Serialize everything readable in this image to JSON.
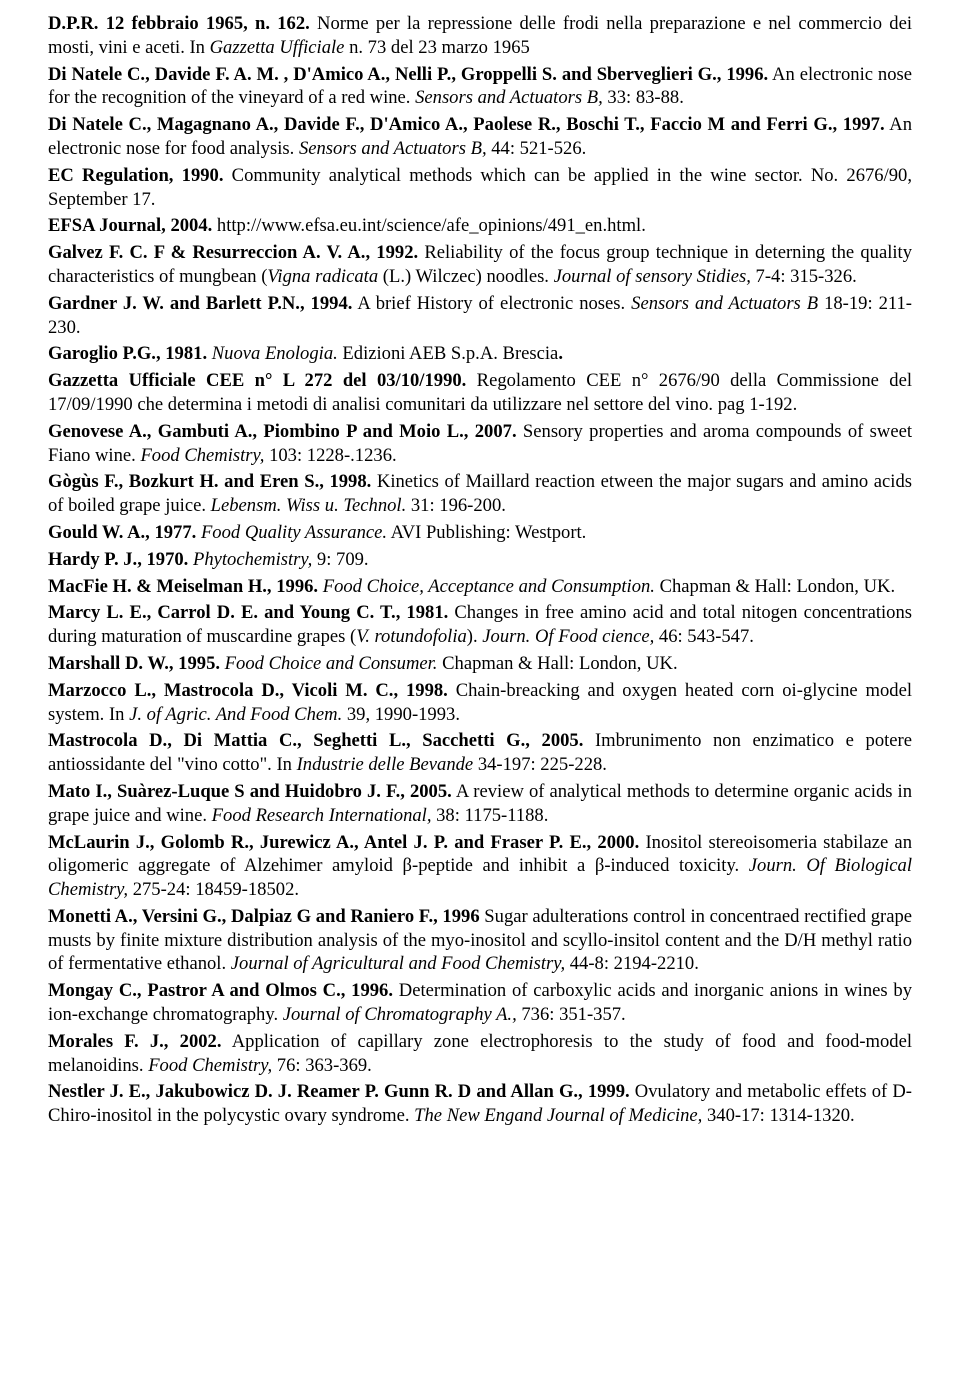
{
  "references": [
    {
      "segments": [
        {
          "t": "D.P.R. 12 febbraio 1965, n. 162.",
          "b": true
        },
        {
          "t": " Norme per la repressione delle frodi nella preparazione e nel commercio dei mosti, vini e aceti. In "
        },
        {
          "t": "Gazzetta Ufficiale",
          "i": true
        },
        {
          "t": " n. 73 del 23 marzo 1965"
        }
      ]
    },
    {
      "segments": [
        {
          "t": "Di Natele C., Davide F. A. M. , D'Amico A., Nelli P., Groppelli S. and Sberveglieri G., 1996.",
          "b": true
        },
        {
          "t": " An electronic nose for the recognition of the vineyard of a red wine. "
        },
        {
          "t": "Sensors and Actuators B,",
          "i": true
        },
        {
          "t": " 33: 83-88."
        }
      ]
    },
    {
      "segments": [
        {
          "t": "Di Natele C., Magagnano A., Davide F., D'Amico A., Paolese R., Boschi T., Faccio M and Ferri G., 1997.",
          "b": true
        },
        {
          "t": " An electronic nose for food analysis. "
        },
        {
          "t": "Sensors and Actuators B,",
          "i": true
        },
        {
          "t": " 44: 521-526."
        }
      ]
    },
    {
      "segments": [
        {
          "t": "EC Regulation, 1990.",
          "b": true
        },
        {
          "t": " Community analytical methods which can be applied in the wine sector. No. 2676/90, September 17."
        }
      ]
    },
    {
      "segments": [
        {
          "t": "EFSA Journal, 2004.",
          "b": true
        },
        {
          "t": " http://www.efsa.eu.int/science/afe_opinions/491_en.html."
        }
      ]
    },
    {
      "segments": [
        {
          "t": "Galvez F. C. F & Resurreccion A. V. A., 1992.",
          "b": true
        },
        {
          "t": " Reliability of the focus group technique in deterning the quality characteristics of mungbean ("
        },
        {
          "t": "Vigna radicata",
          "i": true
        },
        {
          "t": " (L.) Wilczec) noodles. "
        },
        {
          "t": "Journal of sensory Stidies,",
          "i": true
        },
        {
          "t": " 7-4: 315-326."
        }
      ]
    },
    {
      "segments": [
        {
          "t": "Gardner J. W. and Barlett P.N., 1994.",
          "b": true
        },
        {
          "t": " A brief History of electronic noses. "
        },
        {
          "t": "Sensors and Actuators B",
          "i": true
        },
        {
          "t": " 18-19: 211-230."
        }
      ]
    },
    {
      "segments": [
        {
          "t": "Garoglio P.G., 1981.",
          "b": true
        },
        {
          "t": " "
        },
        {
          "t": "Nuova Enologia.",
          "i": true
        },
        {
          "t": " Edizioni AEB S.p.A. Brescia"
        },
        {
          "t": ".",
          "b": true
        }
      ]
    },
    {
      "segments": [
        {
          "t": "Gazzetta Ufficiale CEE n° L 272 del 03/10/1990.",
          "b": true
        },
        {
          "t": " Regolamento CEE n° 2676/90 della Commissione del 17/09/1990 che determina i metodi di analisi comunitari da utilizzare nel settore del vino. pag 1-192."
        }
      ]
    },
    {
      "segments": [
        {
          "t": "Genovese A., Gambuti A., Piombino P and Moio L., 2007.",
          "b": true
        },
        {
          "t": " Sensory properties and aroma compounds of sweet Fiano wine. "
        },
        {
          "t": "Food Chemistry,",
          "i": true
        },
        {
          "t": " 103: 1228-.1236."
        }
      ]
    },
    {
      "segments": [
        {
          "t": "Gògùs F., Bozkurt H. and Eren S., 1998.",
          "b": true
        },
        {
          "t": " Kinetics of Maillard reaction etween the major sugars and amino acids of boiled grape juice. "
        },
        {
          "t": "Lebensm. Wiss u. Technol.",
          "i": true
        },
        {
          "t": " 31: 196-200."
        }
      ]
    },
    {
      "segments": [
        {
          "t": "Gould W. A., 1977.",
          "b": true
        },
        {
          "t": " "
        },
        {
          "t": "Food Quality Assurance.",
          "i": true
        },
        {
          "t": " AVI Publishing: Westport."
        }
      ]
    },
    {
      "segments": [
        {
          "t": "Hardy P. J., 1970.",
          "b": true
        },
        {
          "t": " "
        },
        {
          "t": "Phytochemistry,",
          "i": true
        },
        {
          "t": " 9: 709."
        }
      ]
    },
    {
      "segments": [
        {
          "t": "MacFie H. & Meiselman H., 1996.",
          "b": true
        },
        {
          "t": " "
        },
        {
          "t": "Food Choice, Acceptance and Consumption.",
          "i": true
        },
        {
          "t": " Chapman & Hall: London, UK."
        }
      ]
    },
    {
      "segments": [
        {
          "t": "Marcy L. E., Carrol D. E. and Young C. T., 1981.",
          "b": true
        },
        {
          "t": " Changes in free amino acid and total nitogen concentrations during maturation of muscardine grapes ("
        },
        {
          "t": "V. rotundofolia",
          "i": true
        },
        {
          "t": "). "
        },
        {
          "t": "Journ. Of Food cience,",
          "i": true
        },
        {
          "t": " 46: 543-547."
        }
      ]
    },
    {
      "segments": [
        {
          "t": "Marshall D. W., 1995.",
          "b": true
        },
        {
          "t": " "
        },
        {
          "t": "Food Choice and Consumer.",
          "i": true
        },
        {
          "t": " Chapman & Hall: London, UK."
        }
      ]
    },
    {
      "segments": [
        {
          "t": "Marzocco L., Mastrocola D., Vicoli M. C., 1998.",
          "b": true
        },
        {
          "t": " Chain-breacking and oxygen heated corn oi-glycine model system. In "
        },
        {
          "t": "J. of Agric. And Food Chem.",
          "i": true
        },
        {
          "t": " 39, 1990-1993."
        }
      ]
    },
    {
      "segments": [
        {
          "t": "Mastrocola D., Di Mattia C., Seghetti L., Sacchetti G., 2005.",
          "b": true
        },
        {
          "t": " Imbrunimento non enzimatico e potere antiossidante del \"vino cotto\". In "
        },
        {
          "t": "Industrie delle Bevande",
          "i": true
        },
        {
          "t": " 34-197: 225-228."
        }
      ]
    },
    {
      "segments": [
        {
          "t": "Mato I., Suàrez-Luque S and Huidobro J. F., 2005.",
          "b": true
        },
        {
          "t": " A review of analytical methods to determine organic acids in grape juice and wine. "
        },
        {
          "t": "Food Research International,",
          "i": true
        },
        {
          "t": " 38: 1175-1188."
        }
      ]
    },
    {
      "segments": [
        {
          "t": "McLaurin J., Golomb R., Jurewicz A., Antel J. P. and Fraser P. E., 2000.",
          "b": true
        },
        {
          "t": " Inositol stereoisomeria stabilaze an oligomeric aggregate of Alzehimer amyloid β-peptide and inhibit a β-induced toxicity. "
        },
        {
          "t": "Journ. Of Biological Chemistry,",
          "i": true
        },
        {
          "t": " 275-24: 18459-18502."
        }
      ]
    },
    {
      "segments": [
        {
          "t": "Monetti A., Versini G., Dalpiaz G and Raniero F., 1996",
          "b": true
        },
        {
          "t": " Sugar adulterations control in concentraed rectified grape musts by finite mixture distribution analysis of the myo-inositol and scyllo-insitol content and the D/H methyl ratio of fermentative ethanol. "
        },
        {
          "t": "Journal of Agricultural and Food Chemistry,",
          "i": true
        },
        {
          "t": " 44-8: 2194-2210."
        }
      ]
    },
    {
      "segments": [
        {
          "t": "Mongay C., Pastror A and Olmos C., 1996.",
          "b": true
        },
        {
          "t": " Determination of carboxylic acids and inorganic anions in wines by ion-exchange chromatography. "
        },
        {
          "t": "Journal of Chromatography A.,",
          "i": true
        },
        {
          "t": " 736: 351-357."
        }
      ]
    },
    {
      "segments": [
        {
          "t": "Morales F. J., 2002.",
          "b": true
        },
        {
          "t": " Application of capillary zone electrophoresis to the study of food and food-model melanoidins. "
        },
        {
          "t": "Food Chemistry,",
          "i": true
        },
        {
          "t": " 76: 363-369."
        }
      ]
    },
    {
      "segments": [
        {
          "t": "Nestler J. E., Jakubowicz D. J. Reamer P. Gunn R. D and Allan G., 1999.",
          "b": true
        },
        {
          "t": " Ovulatory and metabolic effets of D-Chiro-inositol in the polycystic ovary syndrome. "
        },
        {
          "t": "The New Engand Journal of Medicine,",
          "i": true
        },
        {
          "t": " 340-17: 1314-1320."
        }
      ]
    }
  ]
}
